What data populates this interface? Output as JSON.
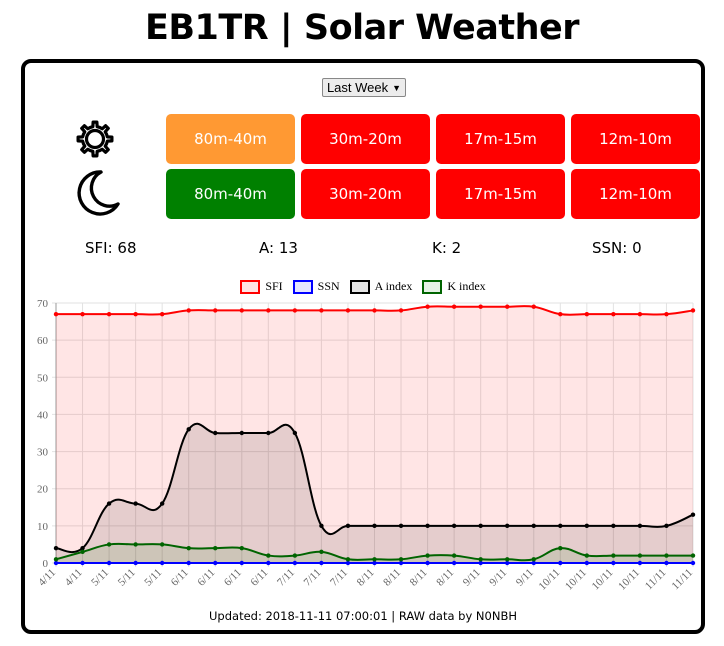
{
  "page": {
    "title": "EB1TR | Solar Weather"
  },
  "range_select": {
    "value": "Last Week",
    "caret": "▼"
  },
  "conditions": {
    "day_icon": "sun-icon",
    "night_icon": "moon-icon",
    "day": [
      {
        "band": "80m-40m",
        "color": "#ff9933"
      },
      {
        "band": "30m-20m",
        "color": "#ff0000"
      },
      {
        "band": "17m-15m",
        "color": "#ff0000"
      },
      {
        "band": "12m-10m",
        "color": "#ff0000"
      }
    ],
    "night": [
      {
        "band": "80m-40m",
        "color": "#008000"
      },
      {
        "band": "30m-20m",
        "color": "#ff0000"
      },
      {
        "band": "17m-15m",
        "color": "#ff0000"
      },
      {
        "band": "12m-10m",
        "color": "#ff0000"
      }
    ]
  },
  "stats": {
    "sfi": "SFI: 68",
    "a": "A: 13",
    "k": "K: 2",
    "ssn": "SSN: 0"
  },
  "chart_data": {
    "type": "line",
    "x": [
      "4/11",
      "4/11",
      "5/11",
      "5/11",
      "5/11",
      "6/11",
      "6/11",
      "6/11",
      "6/11",
      "7/11",
      "7/11",
      "7/11",
      "8/11",
      "8/11",
      "8/11",
      "8/11",
      "9/11",
      "9/11",
      "9/11",
      "10/11",
      "10/11",
      "10/11",
      "10/11",
      "11/11",
      "11/11"
    ],
    "ylim": [
      0,
      70
    ],
    "yticks": [
      0,
      10,
      20,
      30,
      40,
      50,
      60,
      70
    ],
    "legend_position": "top",
    "grid": true,
    "series": [
      {
        "name": "SFI",
        "color": "#ff0000",
        "fill": "rgba(255,0,0,0.1)",
        "values": [
          67,
          67,
          67,
          67,
          67,
          68,
          68,
          68,
          68,
          68,
          68,
          68,
          68,
          68,
          69,
          69,
          69,
          69,
          69,
          67,
          67,
          67,
          67,
          67,
          68
        ]
      },
      {
        "name": "SSN",
        "color": "#0000ff",
        "fill": "rgba(0,0,255,0.1)",
        "values": [
          0,
          0,
          0,
          0,
          0,
          0,
          0,
          0,
          0,
          0,
          0,
          0,
          0,
          0,
          0,
          0,
          0,
          0,
          0,
          0,
          0,
          0,
          0,
          0,
          0
        ]
      },
      {
        "name": "A index",
        "color": "#000000",
        "fill": "rgba(0,0,0,0.1)",
        "values": [
          4,
          4,
          16,
          16,
          16,
          36,
          35,
          35,
          35,
          35,
          10,
          10,
          10,
          10,
          10,
          10,
          10,
          10,
          10,
          10,
          10,
          10,
          10,
          10,
          13
        ]
      },
      {
        "name": "K index",
        "color": "#006400",
        "fill": "rgba(0,128,0,0.1)",
        "values": [
          1,
          3,
          5,
          5,
          5,
          4,
          4,
          4,
          2,
          2,
          3,
          1,
          1,
          1,
          2,
          2,
          1,
          1,
          1,
          4,
          2,
          2,
          2,
          2,
          2
        ]
      }
    ]
  },
  "footer": {
    "text": "Updated: 2018-11-11 07:00:01 | RAW data by N0NBH"
  }
}
